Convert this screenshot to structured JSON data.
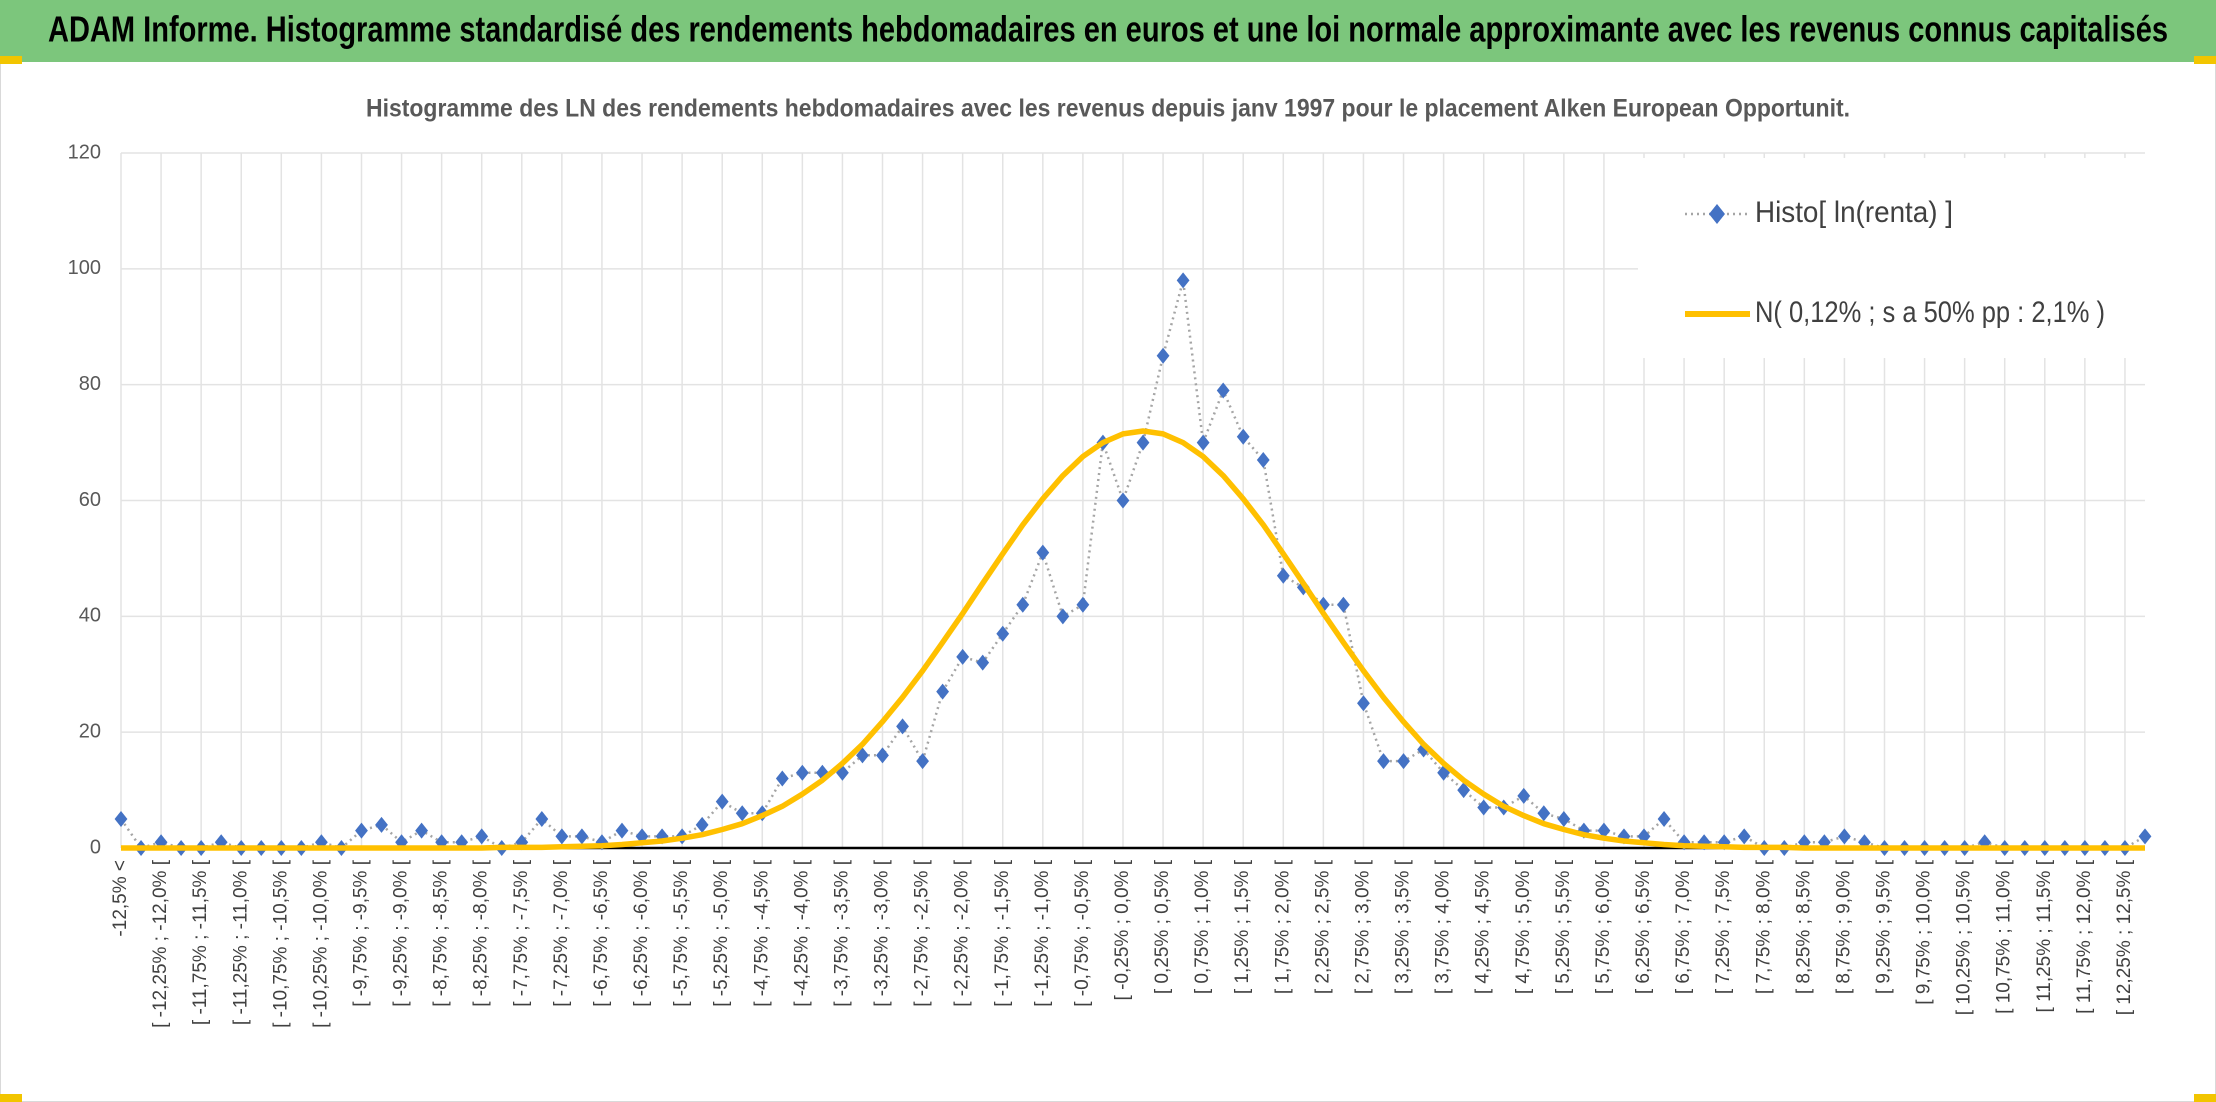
{
  "banner": {
    "title": "ADAM Informe. Histogramme standardisé des rendements hebdomadaires en euros et une loi normale approximante avec les revenus connus capitalisés"
  },
  "chart_data": {
    "type": "line",
    "title": "Histogramme des LN des rendements hebdomadaires avec les revenus depuis janv 1997 pour le placement Alken European Opportunit.",
    "categories": [
      "-12,5% <",
      null,
      "[ -12,25% ; -12,0% [",
      null,
      "[ -11,75% ; -11,5% [",
      null,
      "[ -11,25% ; -11,0% [",
      null,
      "[ -10,75% ; -10,5% [",
      null,
      "[ -10,25% ; -10,0% [",
      null,
      "[ -9,75% ; -9,5% [",
      null,
      "[ -9,25% ; -9,0% [",
      null,
      "[ -8,75% ; -8,5% [",
      null,
      "[ -8,25% ; -8,0% [",
      null,
      "[ -7,75% ; -7,5% [",
      null,
      "[ -7,25% ; -7,0% [",
      null,
      "[ -6,75% ; -6,5% [",
      null,
      "[ -6,25% ; -6,0% [",
      null,
      "[ -5,75% ; -5,5% [",
      null,
      "[ -5,25% ; -5,0% [",
      null,
      "[ -4,75% ; -4,5% [",
      null,
      "[ -4,25% ; -4,0% [",
      null,
      "[ -3,75% ; -3,5% [",
      null,
      "[ -3,25% ; -3,0% [",
      null,
      "[ -2,75% ; -2,5% [",
      null,
      "[ -2,25% ; -2,0% [",
      null,
      "[ -1,75% ; -1,5% [",
      null,
      "[ -1,25% ; -1,0% [",
      null,
      "[ -0,75% ; -0,5% [",
      null,
      "[ -0,25% ; 0,0% [",
      null,
      "[ 0,25% ; 0,5% [",
      null,
      "[ 0,75% ; 1,0% [",
      null,
      "[ 1,25% ; 1,5% [",
      null,
      "[ 1,75% ; 2,0% [",
      null,
      "[ 2,25% ; 2,5% [",
      null,
      "[ 2,75% ; 3,0% [",
      null,
      "[ 3,25% ; 3,5% [",
      null,
      "[ 3,75% ; 4,0% [",
      null,
      "[ 4,25% ; 4,5% [",
      null,
      "[ 4,75% ; 5,0% [",
      null,
      "[ 5,25% ; 5,5% [",
      null,
      "[ 5,75% ; 6,0% [",
      null,
      "[ 6,25% ; 6,5% [",
      null,
      "[ 6,75% ; 7,0% [",
      null,
      "[ 7,25% ; 7,5% [",
      null,
      "[ 7,75% ; 8,0% [",
      null,
      "[ 8,25% ; 8,5% [",
      null,
      "[ 8,75% ; 9,0% [",
      null,
      "[ 9,25% ; 9,5% [",
      null,
      "[ 9,75% ; 10,0% [",
      null,
      "[ 10,25% ; 10,5% [",
      null,
      "[ 10,75% ; 11,0% [",
      null,
      "[ 11,25% ; 11,5% [",
      null,
      "[ 11,75% ; 12,0% [",
      null,
      "[ 12,25% ; 12,5% [",
      null
    ],
    "series": [
      {
        "name": "Histo[ ln(renta) ]",
        "color": "#4472c4",
        "line_color": "#a5a5a5",
        "marker": "diamond",
        "values": [
          5,
          0,
          1,
          0,
          0,
          1,
          0,
          0,
          0,
          0,
          1,
          0,
          3,
          4,
          1,
          3,
          1,
          1,
          2,
          0,
          1,
          5,
          2,
          2,
          1,
          3,
          2,
          2,
          2,
          4,
          8,
          6,
          6,
          12,
          13,
          13,
          13,
          16,
          16,
          21,
          15,
          27,
          33,
          32,
          37,
          42,
          51,
          40,
          42,
          70,
          60,
          70,
          85,
          98,
          70,
          79,
          71,
          67,
          47,
          45,
          42,
          42,
          25,
          15,
          15,
          17,
          13,
          10,
          7,
          7,
          9,
          6,
          5,
          3,
          3,
          2,
          2,
          5,
          1,
          1,
          1,
          2,
          0,
          0,
          1,
          1,
          2,
          1,
          0,
          0,
          0,
          0,
          0,
          1,
          0,
          0,
          0,
          0,
          0,
          0,
          0,
          2
        ]
      },
      {
        "name": "N( 0,12% ; s a 50% pp : 2,1% )",
        "color": "#ffc000",
        "values": [
          0,
          0,
          0,
          0,
          0,
          0,
          0,
          0,
          0,
          0,
          0,
          0,
          0,
          0,
          0,
          0,
          0,
          0,
          0,
          0.1,
          0.1,
          0.1,
          0.2,
          0.3,
          0.4,
          0.6,
          0.9,
          1.2,
          1.7,
          2.3,
          3.2,
          4.2,
          5.6,
          7.2,
          9.3,
          11.7,
          14.6,
          17.9,
          21.8,
          26.0,
          30.6,
          35.5,
          40.5,
          45.7,
          50.8,
          55.8,
          60.3,
          64.3,
          67.6,
          70.0,
          71.5,
          72,
          71.5,
          70,
          67.6,
          64.3,
          60.3,
          55.8,
          50.8,
          45.7,
          40.5,
          35.5,
          30.6,
          26,
          21.8,
          17.9,
          14.6,
          11.7,
          9.3,
          7.2,
          5.6,
          4.2,
          3.2,
          2.3,
          1.7,
          1.2,
          0.9,
          0.6,
          0.4,
          0.3,
          0.2,
          0.1,
          0.1,
          0.1,
          0,
          0,
          0,
          0,
          0,
          0,
          0,
          0,
          0,
          0,
          0,
          0,
          0,
          0,
          0,
          0,
          0,
          0
        ]
      }
    ],
    "ylim": [
      0,
      120
    ],
    "yticks": [
      0,
      20,
      40,
      60,
      80,
      100,
      120
    ],
    "grid": true,
    "legend": "top-right"
  }
}
